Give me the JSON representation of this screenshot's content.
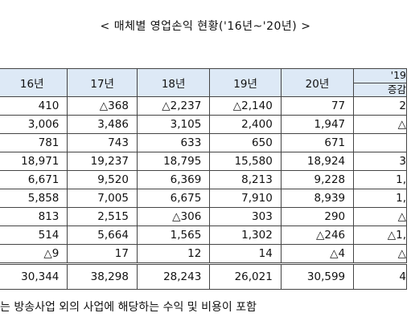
{
  "header": {
    "title": "< 매체별 영업손익 현황('16년~'20년) >"
  },
  "table": {
    "columns": [
      "16년",
      "17년",
      "18년",
      "19년",
      "20년"
    ],
    "last_column": {
      "top": "'19",
      "bottom": "증감"
    },
    "rows": [
      [
        "410",
        "△368",
        "△2,237",
        "△2,140",
        "77",
        "2"
      ],
      [
        "3,006",
        "3,486",
        "3,105",
        "2,400",
        "1,947",
        "△"
      ],
      [
        "781",
        "743",
        "633",
        "650",
        "671",
        ""
      ],
      [
        "18,971",
        "19,237",
        "18,795",
        "15,580",
        "18,924",
        "3"
      ],
      [
        "6,671",
        "9,520",
        "6,369",
        "8,213",
        "9,228",
        "1,"
      ],
      [
        "5,858",
        "7,005",
        "6,675",
        "7,910",
        "8,939",
        "1,"
      ],
      [
        "813",
        "2,515",
        "△306",
        "303",
        "290",
        "△"
      ],
      [
        "514",
        "5,664",
        "1,565",
        "1,302",
        "△246",
        "△1,"
      ],
      [
        "△9",
        "17",
        "12",
        "14",
        "△4",
        "△"
      ]
    ],
    "total": [
      "30,344",
      "38,298",
      "28,243",
      "26,021",
      "30,599",
      "4"
    ]
  },
  "footnote": "는 방송사업 외의 사업에 해당하는 수익 및 비용이 포함"
}
